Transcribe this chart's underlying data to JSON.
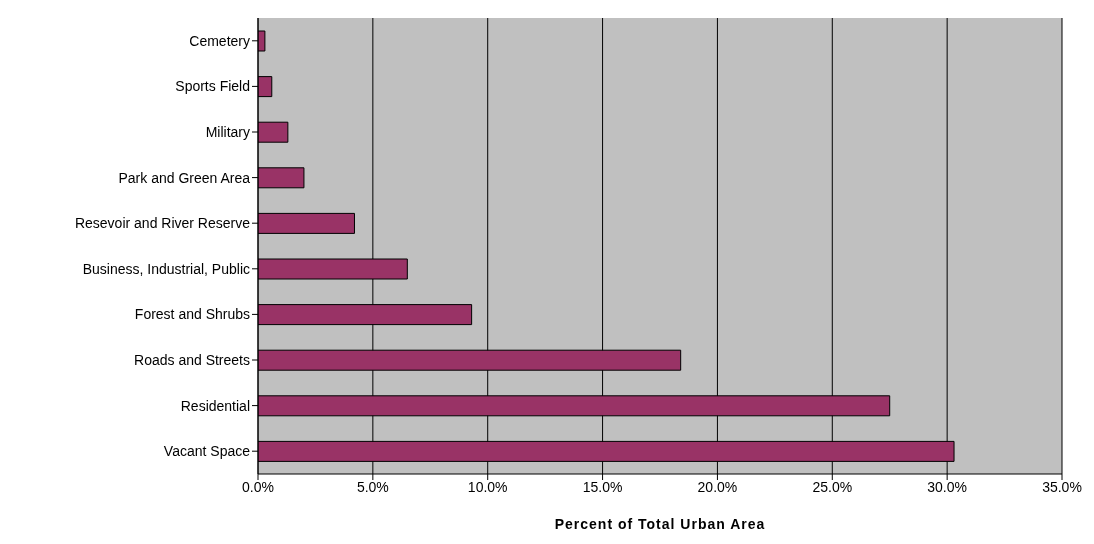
{
  "chart_data": {
    "type": "bar",
    "orientation": "horizontal",
    "xlabel": "Percent of Total Urban Area",
    "categories": [
      "Cemetery",
      "Sports Field",
      "Military",
      "Park and Green Area",
      "Resevoir and River Reserve",
      "Business, Industrial, Public",
      "Forest and Shrubs",
      "Roads and Streets",
      "Residential",
      "Vacant Space"
    ],
    "values": [
      0.3,
      0.6,
      1.3,
      2.0,
      4.2,
      6.5,
      9.3,
      18.4,
      27.5,
      30.3
    ],
    "color": "#993366",
    "xlim": [
      0,
      35
    ],
    "xticks": [
      {
        "value": 0,
        "label": "0.0%"
      },
      {
        "value": 5,
        "label": "5.0%"
      },
      {
        "value": 10,
        "label": "10.0%"
      },
      {
        "value": 15,
        "label": "15.0%"
      },
      {
        "value": 20,
        "label": "20.0%"
      },
      {
        "value": 25,
        "label": "25.0%"
      },
      {
        "value": 30,
        "label": "30.0%"
      },
      {
        "value": 35,
        "label": "35.0%"
      }
    ],
    "grid": "x"
  }
}
